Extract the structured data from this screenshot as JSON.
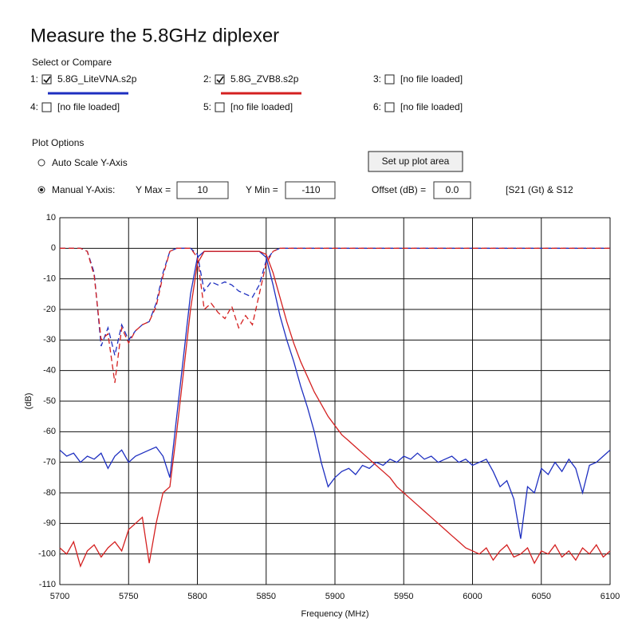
{
  "header": {
    "title": "Measure the 5.8GHz diplexer"
  },
  "compare": {
    "title": "Select or Compare",
    "files": [
      {
        "label": "1:",
        "checked": true
      },
      {
        "label": "2:",
        "checked": true
      },
      {
        "label": "3:",
        "checked": false,
        "name": "[no file loaded]"
      },
      {
        "label": "4:",
        "checked": false,
        "name": "[no file loaded]"
      },
      {
        "label": "5:",
        "checked": false,
        "name": "[no file loaded]"
      },
      {
        "label": "6:",
        "checked": false,
        "name": "[no file loaded]"
      }
    ]
  },
  "plot_options": {
    "title": "Plot Options",
    "auto": "Auto Scale Y-Axis",
    "manual": "Manual Y-Axis:",
    "manual_selected": true,
    "ymax_label": "Y Max =",
    "ymax": "10",
    "ymin_label": "Y Min =",
    "ymin": "-110",
    "offset_label": "Offset (dB) =",
    "offset": "0.0",
    "button": "Set up plot area",
    "trace": "[S21 (Gt) & S12"
  },
  "chart_data": {
    "type": "line",
    "x_label": "Frequency (MHz)",
    "y_label": "(dB)",
    "grid": true,
    "xlim": [
      5700,
      6100
    ],
    "xticks": [
      5700,
      5750,
      5800,
      5850,
      5900,
      5950,
      6000,
      6050,
      6100
    ],
    "ylim": [
      -110,
      10
    ],
    "yticks": [
      10,
      0,
      -10,
      -20,
      -30,
      -40,
      -50,
      -60,
      -70,
      -80,
      -90,
      -100,
      -110
    ],
    "x": [
      5700,
      5705,
      5710,
      5715,
      5720,
      5725,
      5730,
      5735,
      5740,
      5745,
      5750,
      5755,
      5760,
      5765,
      5770,
      5775,
      5780,
      5785,
      5790,
      5795,
      5800,
      5805,
      5810,
      5815,
      5820,
      5825,
      5830,
      5835,
      5840,
      5845,
      5850,
      5855,
      5860,
      5865,
      5870,
      5875,
      5880,
      5885,
      5890,
      5895,
      5900,
      5905,
      5910,
      5915,
      5920,
      5925,
      5930,
      5935,
      5940,
      5945,
      5950,
      5955,
      5960,
      5965,
      5970,
      5975,
      5980,
      5985,
      5990,
      5995,
      6000,
      6005,
      6010,
      6015,
      6020,
      6025,
      6030,
      6035,
      6040,
      6045,
      6050,
      6055,
      6060,
      6065,
      6070,
      6075,
      6080,
      6085,
      6090,
      6095,
      6100
    ],
    "series": [
      {
        "name": "5.8G_LiteVNA.s2p",
        "color": "#1e2fc0",
        "values": [
          -66,
          -68,
          -67,
          -70,
          -68,
          -69,
          -67,
          -72,
          -68,
          -66,
          -70,
          -68,
          -67,
          -66,
          -65,
          -68,
          -75,
          -55,
          -35,
          -15,
          -3,
          -1,
          -1,
          -1,
          -1,
          -1,
          -1,
          -1,
          -1,
          -1,
          -3,
          -12,
          -22,
          -30,
          -37,
          -45,
          -52,
          -60,
          -70,
          -78,
          -75,
          -73,
          -72,
          -74,
          -71,
          -72,
          -70,
          -71,
          -69,
          -70,
          -68,
          -69,
          -67,
          -69,
          -68,
          -70,
          -69,
          -68,
          -70,
          -69,
          -71,
          -70,
          -69,
          -73,
          -78,
          -76,
          -82,
          -95,
          -78,
          -80,
          -72,
          -74,
          -70,
          -73,
          -69,
          -72,
          -80,
          -71,
          -70,
          -68,
          -66
        ],
        "s11": [
          0,
          0,
          0,
          0,
          -1,
          -8,
          -32,
          -26,
          -35,
          -25,
          -30,
          -27,
          -25,
          -24,
          -18,
          -8,
          -1,
          0,
          0,
          0,
          -2,
          -14,
          -11,
          -12,
          -11,
          -12,
          -14,
          -15,
          -16,
          -12,
          -4,
          -1,
          0,
          0,
          0,
          0,
          0,
          0,
          0,
          0,
          0,
          0,
          0,
          0,
          0,
          0,
          0,
          0,
          0,
          0,
          0,
          0,
          0,
          0,
          0,
          0,
          0,
          0,
          0,
          0,
          0,
          0,
          0,
          0,
          0,
          0,
          0,
          0,
          0,
          0,
          0,
          0,
          0,
          0,
          0,
          0,
          0,
          0,
          0,
          0,
          0
        ]
      },
      {
        "name": "5.8G_ZVB8.s2p",
        "color": "#d42020",
        "values": [
          -98,
          -100,
          -96,
          -104,
          -99,
          -97,
          -101,
          -98,
          -96,
          -99,
          -92,
          -90,
          -88,
          -103,
          -90,
          -80,
          -78,
          -60,
          -40,
          -20,
          -5,
          -1,
          -1,
          -1,
          -1,
          -1,
          -1,
          -1,
          -1,
          -1,
          -2,
          -8,
          -16,
          -24,
          -31,
          -37,
          -42,
          -47,
          -51,
          -55,
          -58,
          -61,
          -63,
          -65,
          -67,
          -69,
          -71,
          -73,
          -75,
          -78,
          -80,
          -82,
          -84,
          -86,
          -88,
          -90,
          -92,
          -94,
          -96,
          -98,
          -99,
          -100,
          -98,
          -102,
          -99,
          -97,
          -101,
          -100,
          -98,
          -103,
          -99,
          -100,
          -97,
          -101,
          -99,
          -102,
          -98,
          -100,
          -97,
          -101,
          -99
        ],
        "s11": [
          0,
          0,
          0,
          0,
          -1,
          -9,
          -30,
          -28,
          -44,
          -26,
          -31,
          -27,
          -25,
          -24,
          -19,
          -9,
          -1,
          0,
          0,
          0,
          -3,
          -20,
          -18,
          -21,
          -23,
          -19,
          -26,
          -22,
          -25,
          -15,
          -5,
          -1,
          0,
          0,
          0,
          0,
          0,
          0,
          0,
          0,
          0,
          0,
          0,
          0,
          0,
          0,
          0,
          0,
          0,
          0,
          0,
          0,
          0,
          0,
          0,
          0,
          0,
          0,
          0,
          0,
          0,
          0,
          0,
          0,
          0,
          0,
          0,
          0,
          0,
          0,
          0,
          0,
          0,
          0,
          0,
          0,
          0,
          0,
          0,
          0,
          0
        ]
      }
    ]
  }
}
